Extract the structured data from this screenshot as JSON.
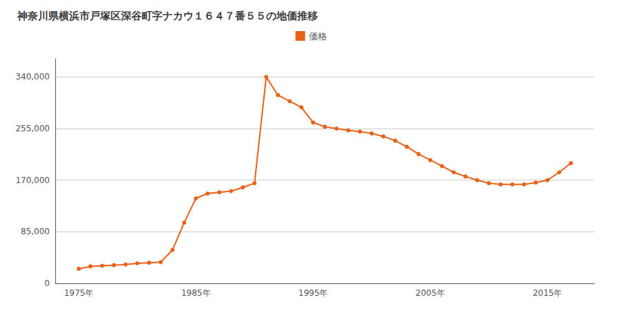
{
  "chart_data": {
    "type": "line",
    "title": "神奈川県横浜市戸塚区深谷町字ナカウ１６４７番５５の地価推移",
    "x": [
      1975,
      1976,
      1977,
      1978,
      1979,
      1980,
      1981,
      1982,
      1983,
      1984,
      1985,
      1986,
      1987,
      1988,
      1989,
      1990,
      1991,
      1992,
      1993,
      1994,
      1995,
      1996,
      1997,
      1998,
      1999,
      2000,
      2001,
      2002,
      2003,
      2004,
      2005,
      2006,
      2007,
      2008,
      2009,
      2010,
      2011,
      2012,
      2013,
      2014,
      2015,
      2016,
      2017
    ],
    "series": [
      {
        "name": "価格",
        "color": "#E8621A",
        "marker": "circle",
        "values": [
          24000,
          28000,
          29000,
          30000,
          31000,
          33000,
          34000,
          35000,
          55000,
          100000,
          140000,
          148000,
          150000,
          152000,
          158000,
          165000,
          340000,
          310000,
          300000,
          290000,
          265000,
          258000,
          255000,
          252000,
          250000,
          247000,
          242000,
          235000,
          225000,
          213000,
          203000,
          193000,
          183000,
          176000,
          170000,
          165000,
          163000,
          163000,
          163000,
          166000,
          170000,
          183000,
          198000
        ]
      }
    ],
    "xlim": [
      1973,
      2019
    ],
    "xticks": [
      {
        "value": 1975,
        "label": "1975年"
      },
      {
        "value": 1985,
        "label": "1985年"
      },
      {
        "value": 1995,
        "label": "1995年"
      },
      {
        "value": 2005,
        "label": "2005年"
      },
      {
        "value": 2015,
        "label": "2015年"
      }
    ],
    "ylim": [
      0,
      370000
    ],
    "yticks": [
      0,
      {
        "value": 85000,
        "label": "85,000"
      },
      {
        "value": 170000,
        "label": "170,000"
      },
      {
        "value": 255000,
        "label": "255,000"
      },
      {
        "value": 340000,
        "label": "340,000"
      }
    ],
    "grid": true,
    "legend": "top"
  }
}
